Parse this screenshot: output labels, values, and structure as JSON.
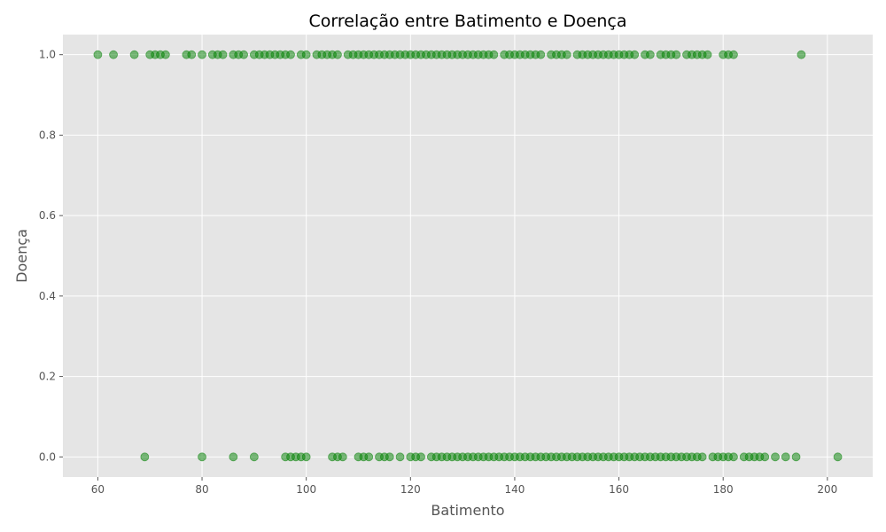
{
  "chart_data": {
    "type": "scatter",
    "title": "Correlação entre Batimento e Doença",
    "xlabel": "Batimento",
    "ylabel": "Doença",
    "xlim": [
      53.3,
      208.7
    ],
    "ylim": [
      -0.05,
      1.05
    ],
    "xticks": [
      60,
      80,
      100,
      120,
      140,
      160,
      180,
      200
    ],
    "yticks": [
      0.0,
      0.2,
      0.4,
      0.6,
      0.8,
      1.0
    ],
    "xtick_labels": [
      "60",
      "80",
      "100",
      "120",
      "140",
      "160",
      "180",
      "200"
    ],
    "ytick_labels": [
      "0.0",
      "0.2",
      "0.4",
      "0.6",
      "0.8",
      "1.0"
    ],
    "grid": true,
    "colors": {
      "plot_background": "#e5e5e5",
      "grid": "#ffffff",
      "marker": "#008000"
    },
    "series": [
      {
        "y": 1,
        "x": [
          60,
          63,
          67,
          70,
          71,
          72,
          73,
          77,
          78,
          80,
          82,
          83,
          84,
          86,
          87,
          88,
          90,
          91,
          92,
          93,
          94,
          95,
          96,
          97,
          99,
          100,
          102,
          103,
          104,
          105,
          106,
          108,
          109,
          110,
          111,
          112,
          113,
          114,
          115,
          116,
          117,
          118,
          119,
          120,
          121,
          122,
          123,
          124,
          125,
          126,
          127,
          128,
          129,
          130,
          131,
          132,
          133,
          134,
          135,
          136,
          138,
          139,
          140,
          141,
          142,
          143,
          144,
          145,
          147,
          148,
          149,
          150,
          152,
          153,
          154,
          155,
          156,
          157,
          158,
          159,
          160,
          161,
          162,
          163,
          165,
          166,
          168,
          169,
          170,
          171,
          173,
          174,
          175,
          176,
          177,
          180,
          181,
          182,
          195
        ]
      },
      {
        "y": 0,
        "x": [
          69,
          80,
          86,
          90,
          96,
          97,
          98,
          99,
          100,
          105,
          106,
          107,
          110,
          111,
          112,
          114,
          115,
          116,
          118,
          120,
          121,
          122,
          124,
          125,
          126,
          127,
          128,
          129,
          130,
          131,
          132,
          133,
          134,
          135,
          136,
          137,
          138,
          139,
          140,
          141,
          142,
          143,
          144,
          145,
          146,
          147,
          148,
          149,
          150,
          151,
          152,
          153,
          154,
          155,
          156,
          157,
          158,
          159,
          160,
          161,
          162,
          163,
          164,
          165,
          166,
          167,
          168,
          169,
          170,
          171,
          172,
          173,
          174,
          175,
          176,
          178,
          179,
          180,
          181,
          182,
          184,
          185,
          186,
          187,
          188,
          190,
          192,
          194,
          202
        ]
      }
    ]
  }
}
